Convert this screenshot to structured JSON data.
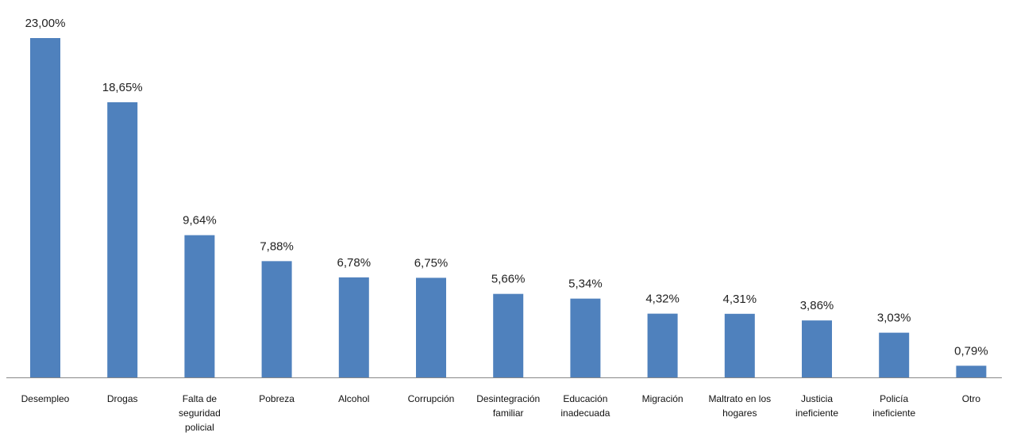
{
  "chart_data": {
    "type": "bar",
    "categories": [
      "Desempleo",
      "Drogas",
      "Falta de seguridad policial",
      "Pobreza",
      "Alcohol",
      "Corrupción",
      "Desintegración familiar",
      "Educación inadecuada",
      "Migración",
      "Maltrato en los hogares",
      "Justicia ineficiente",
      "Policía ineficiente",
      "Otro"
    ],
    "values": [
      23.0,
      18.65,
      9.64,
      7.88,
      6.78,
      6.75,
      5.66,
      5.34,
      4.32,
      4.31,
      3.86,
      3.03,
      0.79
    ],
    "value_labels": [
      "23,00%",
      "18,65%",
      "9,64%",
      "7,88%",
      "6,78%",
      "6,75%",
      "5,66%",
      "5,34%",
      "4,32%",
      "4,31%",
      "3,86%",
      "3,03%",
      "0,79%"
    ],
    "color": "#4f81bd"
  }
}
